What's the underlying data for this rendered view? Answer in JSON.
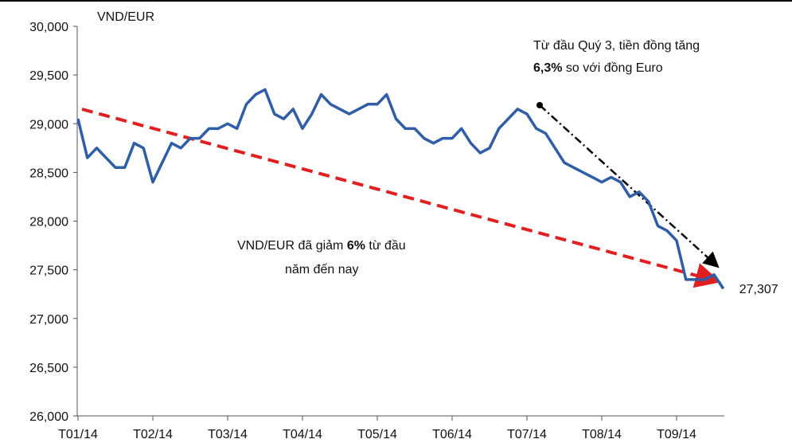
{
  "chart_data": {
    "type": "line",
    "y_label": "VND/EUR",
    "categories": [
      "T01/14",
      null,
      null,
      null,
      null,
      null,
      null,
      null,
      "T02/14",
      null,
      null,
      null,
      null,
      null,
      null,
      null,
      "T03/14",
      null,
      null,
      null,
      null,
      null,
      null,
      null,
      "T04/14",
      null,
      null,
      null,
      null,
      null,
      null,
      null,
      "T05/14",
      null,
      null,
      null,
      null,
      null,
      null,
      null,
      "T06/14",
      null,
      null,
      null,
      null,
      null,
      null,
      null,
      "T07/14",
      null,
      null,
      null,
      null,
      null,
      null,
      null,
      "T08/14",
      null,
      null,
      null,
      null,
      null,
      null,
      null,
      "T09/14",
      null,
      null,
      null,
      null,
      null
    ],
    "series": [
      {
        "name": "VND/EUR",
        "color": "#2f5da6",
        "values": [
          29050,
          28650,
          28750,
          28650,
          28550,
          28550,
          28800,
          28750,
          28400,
          28600,
          28800,
          28750,
          28850,
          28850,
          28950,
          28950,
          29000,
          28950,
          29200,
          29300,
          29350,
          29100,
          29050,
          29150,
          28950,
          29100,
          29300,
          29200,
          29150,
          29100,
          29150,
          29200,
          29200,
          29300,
          29050,
          28950,
          28950,
          28850,
          28800,
          28850,
          28850,
          28950,
          28800,
          28700,
          28750,
          28950,
          29050,
          29150,
          29100,
          28950,
          28900,
          28750,
          28600,
          28550,
          28500,
          28450,
          28400,
          28450,
          28400,
          28250,
          28300,
          28200,
          27950,
          27900,
          27800,
          27400,
          27400,
          27400,
          27450,
          27307
        ]
      }
    ],
    "ylim": [
      26000,
      30000
    ],
    "yticks": [
      {
        "value": 26000,
        "label": "26,000"
      },
      {
        "value": 26500,
        "label": "26,500"
      },
      {
        "value": 27000,
        "label": "27,000"
      },
      {
        "value": 27500,
        "label": "27,500"
      },
      {
        "value": 28000,
        "label": "28,000"
      },
      {
        "value": 28500,
        "label": "28,500"
      },
      {
        "value": 29000,
        "label": "29,000"
      },
      {
        "value": 29500,
        "label": "29,500"
      },
      {
        "value": 30000,
        "label": "30,000"
      }
    ],
    "end_label": "27,307",
    "annotations": {
      "q3": {
        "line1": "Từ đầu Quý 3, tiền đồng tăng",
        "bold": "6,3%",
        "rest": " so với đồng Euro"
      },
      "ytd": {
        "pre": "VND/EUR đã giảm ",
        "bold": "6%",
        "post": " từ đầu",
        "line2": "năm đến nay"
      }
    }
  }
}
